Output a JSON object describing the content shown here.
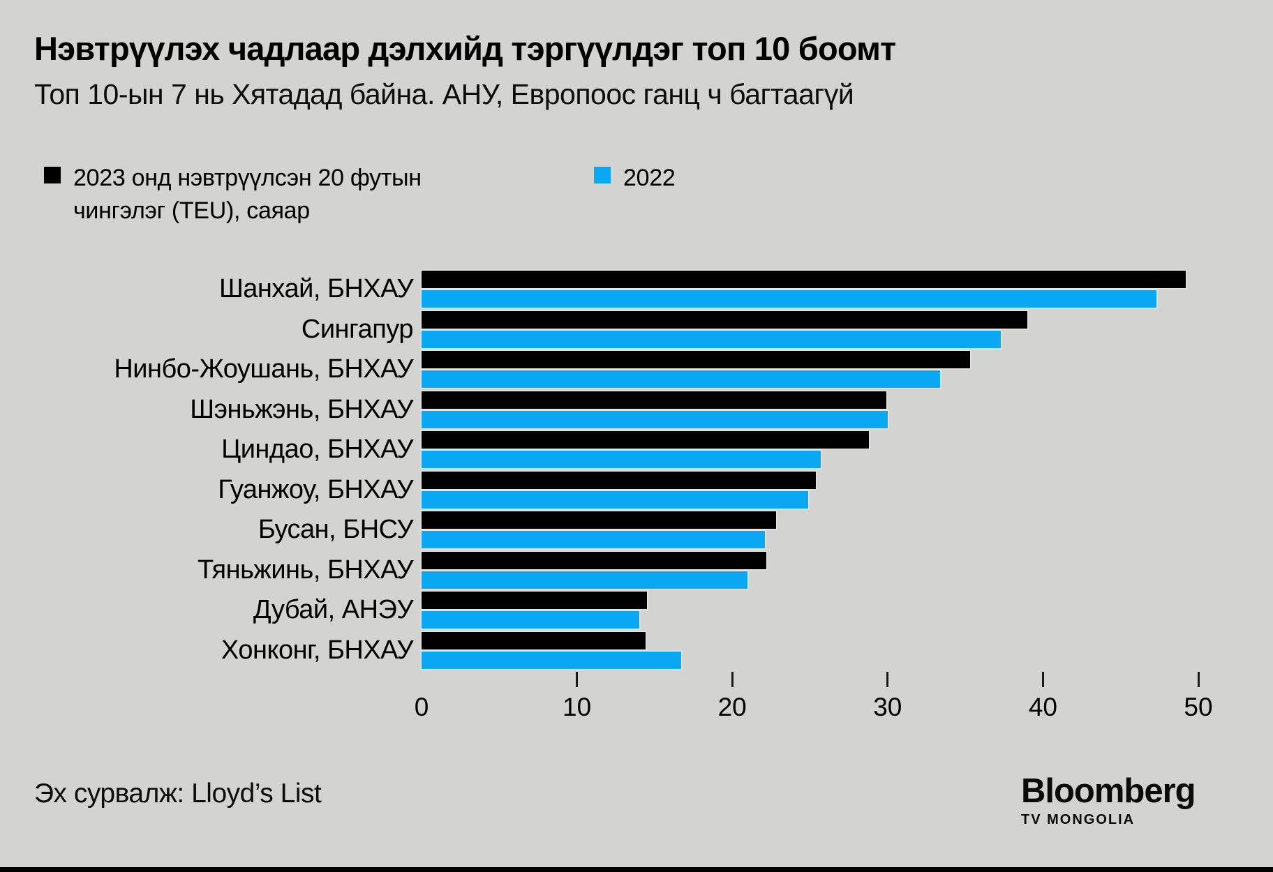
{
  "header": {
    "title": "Нэвтрүүлэх чадлаар дэлхийд тэргүүлдэг топ 10 боомт",
    "subtitle": "Топ 10-ын 7 нь Хятадад байна. АНУ, Европоос ганц ч багтаагүй"
  },
  "legend": {
    "series_2023_label": "2023 онд нэвтрүүлсэн 20 футын чингэлэг (TEU), саяар",
    "series_2022_label": "2022"
  },
  "chart_data": {
    "type": "bar",
    "orientation": "horizontal",
    "title": "Нэвтрүүлэх чадлаар дэлхийд тэргүүлдэг топ 10 боомт",
    "subtitle": "Топ 10-ын 7 нь Хятадад байна. АНУ, Европоос ганц ч багтаагүй",
    "categories": [
      "Шанхай, БНХАУ",
      "Сингапур",
      "Нинбо-Жоушань, БНХАУ",
      "Шэньжэнь, БНХАУ",
      "Циндао, БНХАУ",
      "Гуанжоу, БНХАУ",
      "Бусан, БНСУ",
      "Тяньжинь, БНХАУ",
      "Дубай, АНЭУ",
      "Хонконг, БНХАУ"
    ],
    "series": [
      {
        "name": "2023 онд нэвтрүүлсэн 20 футын чингэлэг (TEU), саяар",
        "color": "#000000",
        "values": [
          49.2,
          39.0,
          35.3,
          29.9,
          28.8,
          25.4,
          22.8,
          22.2,
          14.5,
          14.4
        ]
      },
      {
        "name": "2022",
        "color": "#0aa7f2",
        "values": [
          47.3,
          37.3,
          33.4,
          30.0,
          25.7,
          24.9,
          22.1,
          21.0,
          14.0,
          16.7
        ]
      }
    ],
    "xlabel": "",
    "ylabel": "",
    "xlim": [
      0,
      50
    ],
    "xticks": [
      0,
      10,
      20,
      30,
      40,
      50
    ],
    "grid": false,
    "legend_position": "top",
    "unit": "саяа TEU"
  },
  "footer": {
    "source": "Эх сурвалж: Lloyd’s List",
    "logo_main": "Bloomberg",
    "logo_sub": "TV MONGOLIA"
  },
  "colors": {
    "background": "#d3d3d2",
    "bar_2023": "#000000",
    "bar_2022": "#0aa7f2",
    "text": "#000000"
  }
}
